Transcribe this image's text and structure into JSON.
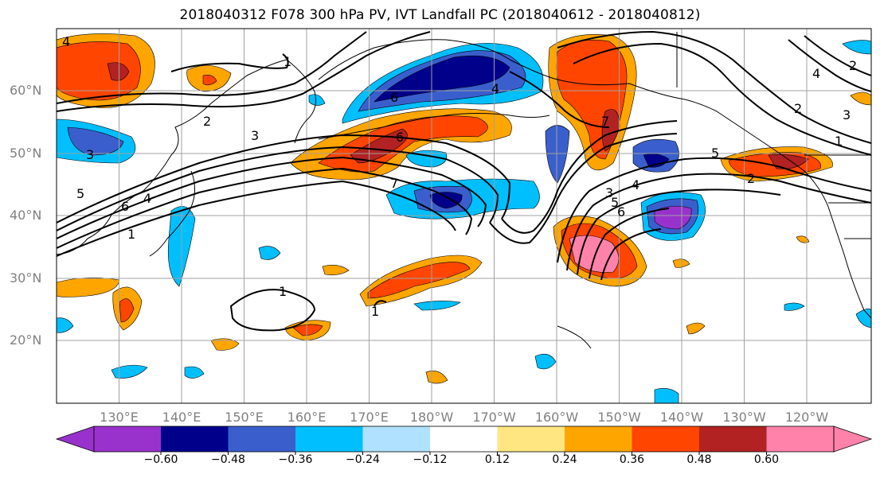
{
  "title": "2018040312 F078 300 hPa PV, IVT Landfall PC (2018040612 - 2018040812)",
  "latitude_labels": [
    "60°N",
    "50°N",
    "40°N",
    "30°N",
    "20°N"
  ],
  "longitude_labels": [
    "130°E",
    "140°E",
    "150°E",
    "160°E",
    "170°E",
    "180°W",
    "170°W",
    "160°W",
    "150°W",
    "140°W",
    "130°W",
    "120°W"
  ],
  "colorbar": {
    "tick_labels": [
      "−0.60",
      "−0.48",
      "−0.36",
      "−0.24",
      "−0.12",
      "0.12",
      "0.24",
      "0.36",
      "0.48",
      "0.60"
    ],
    "colors": [
      "#9932cc",
      "#00008b",
      "#3a5fcd",
      "#00bfff",
      "#b0e2ff",
      "#ffffff",
      "#ffe680",
      "#ffa500",
      "#ff4500",
      "#b22222",
      "#ff82ab"
    ],
    "extend": "both"
  },
  "contour_labels": [
    "1",
    "2",
    "3",
    "4",
    "5",
    "6",
    "7"
  ],
  "colors": {
    "coastline": "#000000",
    "grid": "#a0a0a0",
    "axis_label": "#808080"
  }
}
